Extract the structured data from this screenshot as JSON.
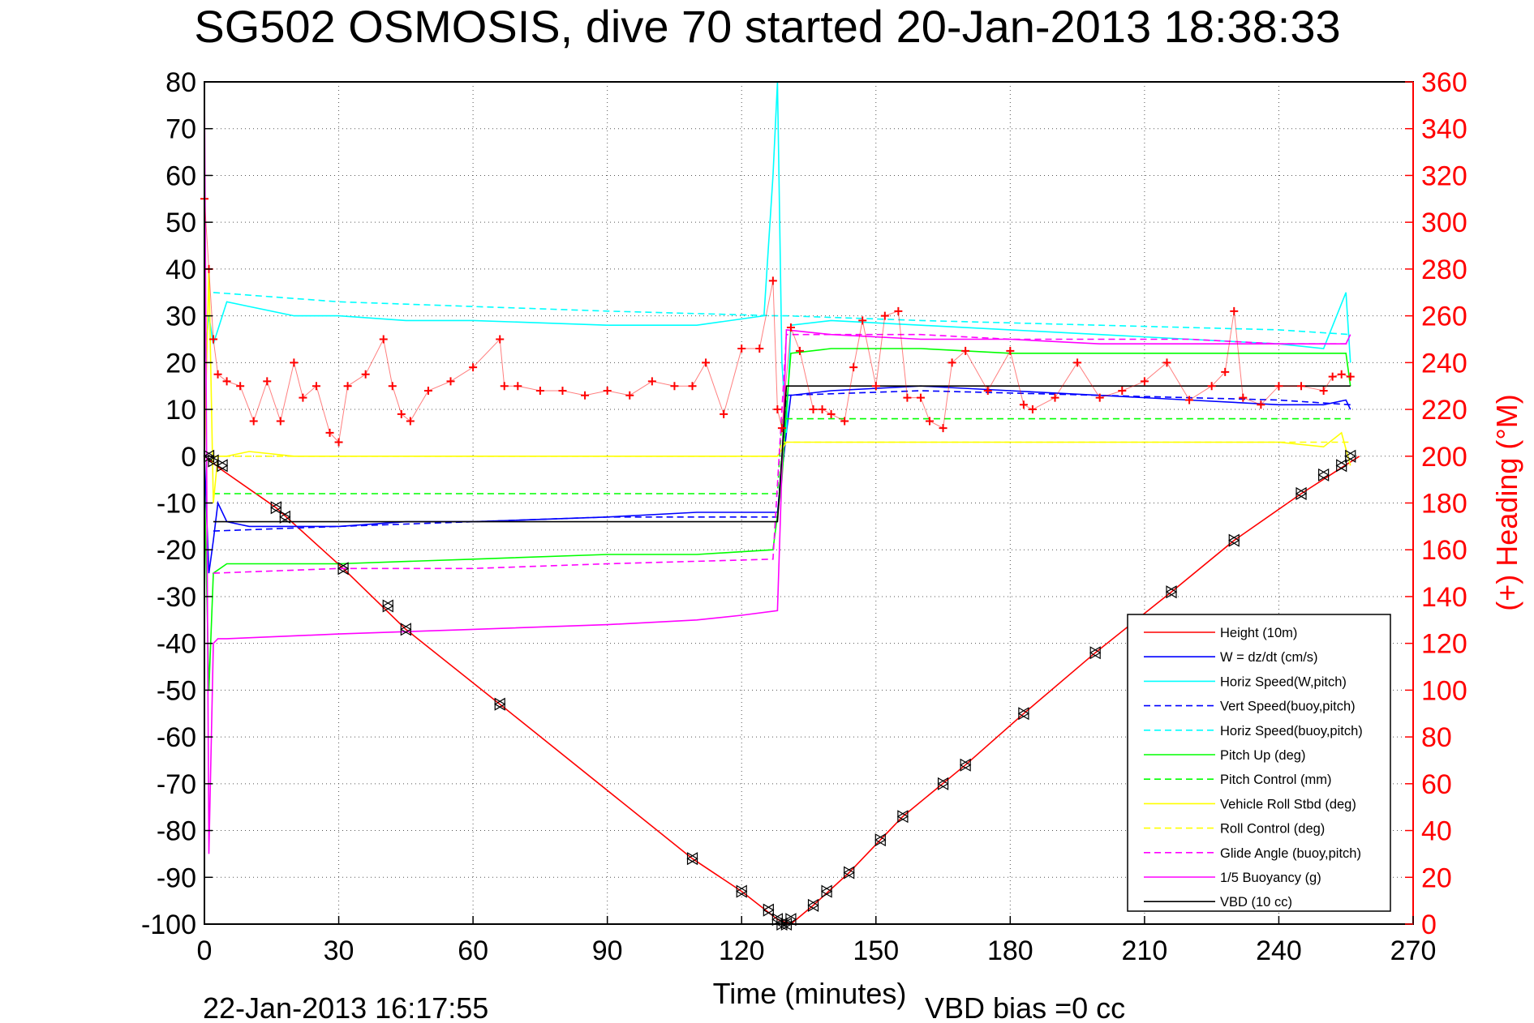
{
  "chart_data": {
    "type": "line",
    "title": "SG502 OSMOSIS, dive 70 started 20-Jan-2013 18:38:33",
    "xlabel": "Time (minutes)",
    "ylabel_right": "(+) Heading (°M)",
    "footer_left": "22-Jan-2013 16:17:55",
    "footer_right": "VBD bias =0 cc",
    "xlim": [
      0,
      270
    ],
    "ylim": [
      -100,
      80
    ],
    "y2lim": [
      0,
      360
    ],
    "xticks": [
      "0",
      "30",
      "60",
      "90",
      "120",
      "150",
      "180",
      "210",
      "240",
      "270"
    ],
    "yticks": [
      "-100",
      "-90",
      "-80",
      "-70",
      "-60",
      "-50",
      "-40",
      "-30",
      "-20",
      "-10",
      "0",
      "10",
      "20",
      "30",
      "40",
      "50",
      "60",
      "70",
      "80"
    ],
    "y2ticks": [
      "0",
      "20",
      "40",
      "60",
      "80",
      "100",
      "120",
      "140",
      "160",
      "180",
      "200",
      "220",
      "240",
      "260",
      "280",
      "300",
      "320",
      "340",
      "360"
    ],
    "grid": true,
    "legend_position": "bottom-right",
    "series": [
      {
        "name": "Height (10m)",
        "color": "#ff0000",
        "dash": "solid",
        "x": [
          0,
          4,
          16,
          31,
          45,
          66,
          109,
          120,
          128,
          131,
          136,
          144,
          151,
          156,
          170,
          183,
          199,
          216,
          230,
          245,
          258
        ],
        "y": [
          0,
          -3,
          -11,
          -24,
          -37,
          -53,
          -86,
          -93,
          -99,
          -100,
          -96,
          -89,
          -82,
          -77,
          -66,
          -55,
          -42,
          -29,
          -18,
          -8,
          0
        ]
      },
      {
        "name": "W = dz/dt (cm/s)",
        "color": "#0000ff",
        "dash": "solid",
        "x": [
          0,
          1,
          2,
          3,
          5,
          10,
          20,
          30,
          45,
          60,
          90,
          110,
          128,
          130,
          131,
          140,
          160,
          180,
          200,
          220,
          240,
          250,
          255,
          256
        ],
        "y": [
          0,
          -25,
          -18,
          -10,
          -14,
          -15,
          -15,
          -15,
          -14,
          -14,
          -13,
          -12,
          -12,
          5,
          13,
          14,
          15,
          14,
          13,
          12,
          11,
          11,
          12,
          10
        ]
      },
      {
        "name": "Horiz Speed(W,pitch)",
        "color": "#00ffff",
        "dash": "solid",
        "x": [
          0,
          1,
          2,
          5,
          10,
          20,
          30,
          45,
          60,
          90,
          110,
          125,
          127,
          128,
          129,
          130,
          131,
          140,
          160,
          180,
          200,
          220,
          240,
          250,
          255,
          256
        ],
        "y": [
          20,
          30,
          24,
          33,
          32,
          30,
          30,
          29,
          29,
          28,
          28,
          30,
          60,
          80,
          20,
          5,
          28,
          29,
          28,
          27,
          26,
          25,
          24,
          23,
          35,
          20
        ]
      },
      {
        "name": "Vert Speed(buoy,pitch)",
        "color": "#0000ff",
        "dash": "dashed",
        "x": [
          2,
          30,
          60,
          90,
          128,
          130,
          160,
          200,
          240,
          256
        ],
        "y": [
          -16,
          -15,
          -14,
          -13,
          -13,
          13,
          14,
          13,
          12,
          11
        ]
      },
      {
        "name": "Horiz Speed(buoy,pitch)",
        "color": "#00ffff",
        "dash": "dashed",
        "x": [
          2,
          30,
          60,
          90,
          128,
          130,
          160,
          200,
          240,
          256
        ],
        "y": [
          35,
          33,
          32,
          31,
          30,
          30,
          29,
          28,
          27,
          26
        ]
      },
      {
        "name": "Pitch Up (deg)",
        "color": "#00ff00",
        "dash": "solid",
        "x": [
          0,
          1,
          2,
          5,
          30,
          60,
          90,
          110,
          127,
          129,
          130,
          131,
          140,
          160,
          180,
          200,
          220,
          240,
          250,
          255,
          256
        ],
        "y": [
          -5,
          -50,
          -25,
          -23,
          -23,
          -22,
          -21,
          -21,
          -20,
          -5,
          10,
          22,
          23,
          23,
          22,
          22,
          22,
          22,
          22,
          22,
          15
        ]
      },
      {
        "name": "Pitch Control (mm)",
        "color": "#00ff00",
        "dash": "dashed",
        "x": [
          2,
          128,
          129,
          256
        ],
        "y": [
          -8,
          -8,
          8,
          8
        ]
      },
      {
        "name": "Vehicle Roll Stbd (deg)",
        "color": "#ffff00",
        "dash": "solid",
        "x": [
          0,
          1,
          2,
          3,
          5,
          10,
          20,
          40,
          60,
          80,
          100,
          120,
          128,
          130,
          140,
          150,
          160,
          180,
          200,
          220,
          240,
          250,
          254,
          256
        ],
        "y": [
          0,
          40,
          -10,
          0,
          0,
          1,
          0,
          0,
          0,
          0,
          0,
          0,
          0,
          3,
          3,
          3,
          3,
          3,
          3,
          3,
          3,
          2,
          5,
          -2
        ]
      },
      {
        "name": "Roll Control (deg)",
        "color": "#ffff00",
        "dash": "dashed",
        "x": [
          2,
          128,
          129,
          256
        ],
        "y": [
          0,
          0,
          3,
          3
        ]
      },
      {
        "name": "Glide Angle (buoy,pitch)",
        "color": "#ff00ff",
        "dash": "dashed",
        "x": [
          2,
          30,
          60,
          90,
          127,
          130,
          140,
          160,
          180,
          200,
          220,
          240,
          250,
          256
        ],
        "y": [
          -25,
          -24,
          -24,
          -23,
          -22,
          26,
          26,
          26,
          25,
          25,
          25,
          24,
          24,
          24
        ]
      },
      {
        "name": "1/5 Buoyancy (g)",
        "color": "#ff00ff",
        "dash": "solid",
        "x": [
          0,
          1,
          2,
          3,
          5,
          30,
          60,
          90,
          110,
          120,
          128,
          130,
          140,
          160,
          180,
          200,
          220,
          240,
          250,
          255,
          256
        ],
        "y": [
          80,
          -85,
          -40,
          -39,
          -39,
          -38,
          -37,
          -36,
          -35,
          -34,
          -33,
          27,
          26,
          25,
          25,
          24,
          24,
          24,
          24,
          24,
          26
        ]
      },
      {
        "name": "VBD (10 cc)",
        "color": "#000000",
        "dash": "solid",
        "x": [
          2,
          128,
          129,
          130,
          256
        ],
        "y": [
          -14,
          -14,
          0,
          15,
          15
        ]
      }
    ],
    "heading": {
      "name": "(+) Heading",
      "color": "#ff0000",
      "marker": "+",
      "x": [
        0,
        1,
        2,
        3,
        5,
        8,
        11,
        14,
        17,
        20,
        22,
        25,
        28,
        30,
        32,
        36,
        40,
        42,
        44,
        46,
        50,
        55,
        60,
        66,
        67,
        70,
        75,
        80,
        85,
        90,
        95,
        100,
        105,
        109,
        112,
        116,
        120,
        124,
        127,
        128,
        129,
        131,
        133,
        136,
        138,
        140,
        143,
        145,
        147,
        150,
        152,
        155,
        157,
        160,
        162,
        165,
        167,
        170,
        175,
        180,
        183,
        185,
        190,
        195,
        200,
        205,
        210,
        215,
        220,
        225,
        228,
        230,
        232,
        236,
        240,
        245,
        250,
        252,
        254,
        256
      ],
      "y": [
        310,
        280,
        250,
        235,
        232,
        230,
        215,
        232,
        215,
        240,
        225,
        230,
        210,
        206,
        230,
        235,
        250,
        230,
        218,
        215,
        228,
        232,
        238,
        250,
        230,
        230,
        228,
        228,
        226,
        228,
        226,
        232,
        230,
        230,
        240,
        218,
        246,
        246,
        275,
        220,
        212,
        255,
        245,
        220,
        220,
        218,
        215,
        238,
        258,
        230,
        260,
        262,
        225,
        225,
        215,
        212,
        240,
        245,
        228,
        245,
        222,
        220,
        225,
        240,
        225,
        228,
        232,
        240,
        224,
        230,
        236,
        262,
        225,
        222,
        230,
        230,
        228,
        234,
        235,
        234
      ]
    },
    "markers": {
      "name": "Height (10m)",
      "x": [
        1,
        2,
        4,
        16,
        18,
        31,
        41,
        45,
        66,
        109,
        120,
        126,
        128,
        129,
        130,
        131,
        136,
        139,
        144,
        151,
        156,
        165,
        170,
        183,
        199,
        216,
        230,
        245,
        250,
        254,
        256
      ],
      "y": [
        0,
        -1,
        -2,
        -11,
        -13,
        -24,
        -32,
        -37,
        -53,
        -86,
        -93,
        -97,
        -99,
        -100,
        -100,
        -99,
        -96,
        -93,
        -89,
        -82,
        -77,
        -70,
        -66,
        -55,
        -42,
        -29,
        -18,
        -8,
        -4,
        -2,
        0
      ]
    }
  }
}
